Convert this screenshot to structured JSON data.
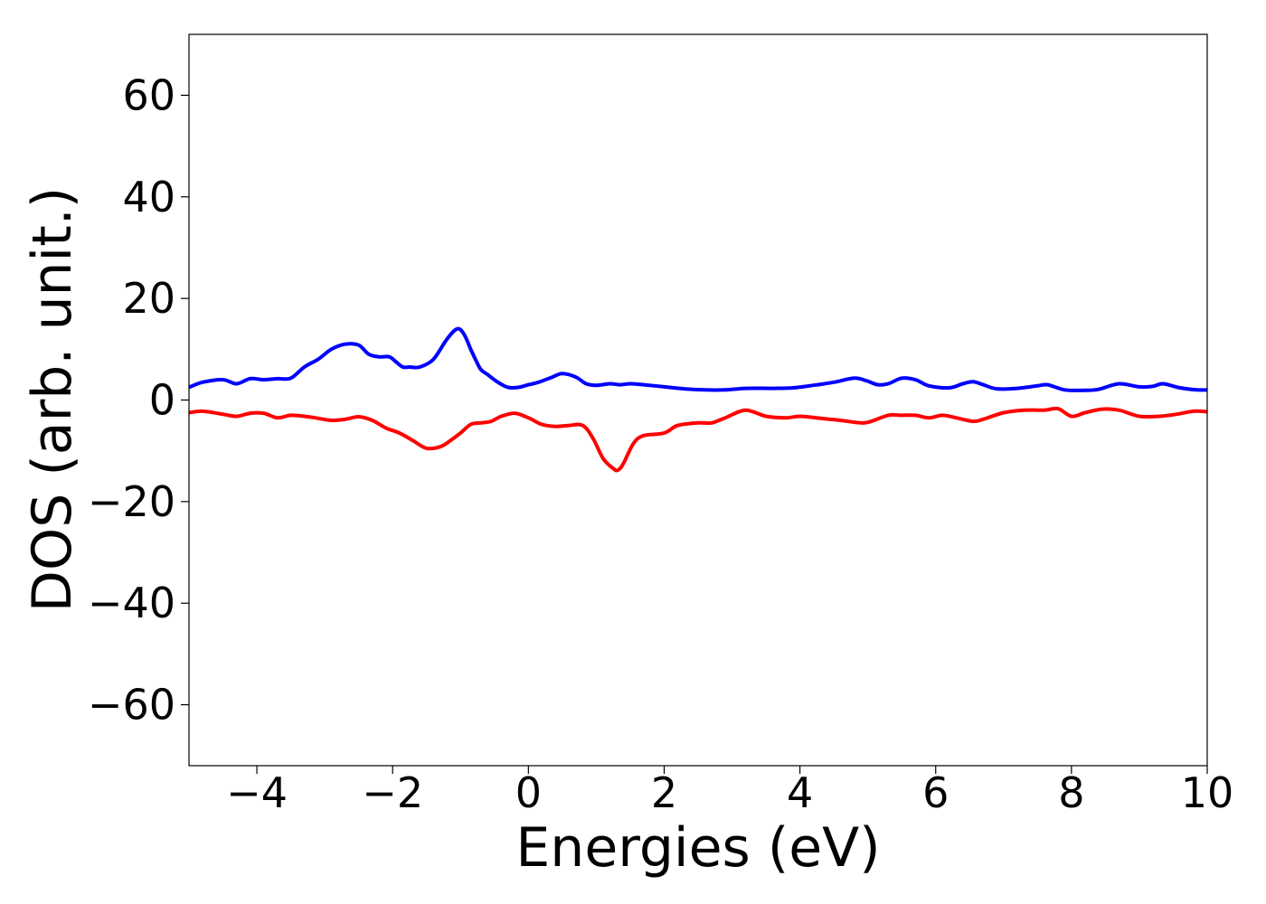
{
  "chart_data": {
    "type": "line",
    "title": "",
    "xlabel": "Energies (eV)",
    "ylabel": "DOS (arb. unit.)",
    "xlim": [
      -5,
      10
    ],
    "ylim": [
      -72,
      72
    ],
    "xticks": [
      -4,
      -2,
      0,
      2,
      4,
      6,
      8,
      10
    ],
    "xtick_labels": [
      "−4",
      "−2",
      "0",
      "2",
      "4",
      "6",
      "8",
      "10"
    ],
    "yticks": [
      60,
      40,
      20,
      0,
      -20,
      -40,
      -60
    ],
    "ytick_labels": [
      "60",
      "40",
      "20",
      "0",
      "−20",
      "−40",
      "−60"
    ],
    "grid": false,
    "legend": "none",
    "series": [
      {
        "color": "#0000ff",
        "x": [
          -5.0,
          -4.8,
          -4.5,
          -4.3,
          -4.1,
          -3.9,
          -3.7,
          -3.5,
          -3.3,
          -3.1,
          -2.9,
          -2.7,
          -2.5,
          -2.35,
          -2.2,
          -2.05,
          -1.95,
          -1.85,
          -1.75,
          -1.6,
          -1.4,
          -1.2,
          -1.05,
          -0.95,
          -0.85,
          -0.78,
          -0.7,
          -0.6,
          -0.45,
          -0.3,
          -0.15,
          0.0,
          0.15,
          0.35,
          0.5,
          0.7,
          0.85,
          1.0,
          1.2,
          1.35,
          1.5,
          1.7,
          2.0,
          2.3,
          2.6,
          2.9,
          3.2,
          3.6,
          3.9,
          4.2,
          4.5,
          4.8,
          4.98,
          5.15,
          5.3,
          5.5,
          5.7,
          5.9,
          6.2,
          6.4,
          6.55,
          6.7,
          6.9,
          7.2,
          7.5,
          7.65,
          7.9,
          8.2,
          8.4,
          8.7,
          9.0,
          9.2,
          9.35,
          9.6,
          9.85,
          10.0
        ],
        "y": [
          2.5,
          3.5,
          4.0,
          3.2,
          4.2,
          4.0,
          4.2,
          4.3,
          6.5,
          8.0,
          10.0,
          11.0,
          10.8,
          9.0,
          8.5,
          8.5,
          7.5,
          6.5,
          6.5,
          6.5,
          8.0,
          12.0,
          14.0,
          13.0,
          10.0,
          8.0,
          6.0,
          5.0,
          3.5,
          2.5,
          2.5,
          3.0,
          3.5,
          4.5,
          5.2,
          4.5,
          3.2,
          2.9,
          3.2,
          3.0,
          3.2,
          3.0,
          2.6,
          2.2,
          2.0,
          2.0,
          2.3,
          2.3,
          2.4,
          2.9,
          3.5,
          4.3,
          3.8,
          3.0,
          3.2,
          4.3,
          4.0,
          2.8,
          2.4,
          3.2,
          3.6,
          3.0,
          2.2,
          2.3,
          2.8,
          3.0,
          2.0,
          1.9,
          2.1,
          3.2,
          2.6,
          2.7,
          3.2,
          2.4,
          2.0,
          2.0
        ]
      },
      {
        "color": "#ff0000",
        "x": [
          -5.0,
          -4.8,
          -4.5,
          -4.3,
          -4.1,
          -3.9,
          -3.7,
          -3.5,
          -3.3,
          -3.1,
          -2.9,
          -2.7,
          -2.5,
          -2.3,
          -2.1,
          -1.9,
          -1.7,
          -1.5,
          -1.3,
          -1.15,
          -1.0,
          -0.85,
          -0.7,
          -0.55,
          -0.4,
          -0.2,
          0.0,
          0.2,
          0.4,
          0.6,
          0.8,
          0.95,
          1.1,
          1.25,
          1.32,
          1.4,
          1.55,
          1.7,
          2.0,
          2.2,
          2.5,
          2.7,
          2.9,
          3.2,
          3.5,
          3.8,
          4.0,
          4.3,
          4.6,
          4.9,
          5.05,
          5.3,
          5.5,
          5.7,
          5.9,
          6.1,
          6.3,
          6.55,
          6.7,
          7.0,
          7.3,
          7.6,
          7.8,
          8.0,
          8.2,
          8.45,
          8.7,
          9.0,
          9.3,
          9.55,
          9.8,
          10.0
        ],
        "y": [
          -2.5,
          -2.2,
          -2.8,
          -3.2,
          -2.6,
          -2.6,
          -3.5,
          -3.0,
          -3.2,
          -3.6,
          -4.0,
          -3.8,
          -3.3,
          -4.0,
          -5.5,
          -6.5,
          -8.0,
          -9.5,
          -9.2,
          -8.0,
          -6.5,
          -4.8,
          -4.5,
          -4.2,
          -3.2,
          -2.6,
          -3.5,
          -4.8,
          -5.2,
          -5.0,
          -5.0,
          -7.5,
          -11.5,
          -13.5,
          -13.8,
          -12.5,
          -8.5,
          -7.0,
          -6.5,
          -5.0,
          -4.5,
          -4.5,
          -3.5,
          -2.0,
          -3.2,
          -3.5,
          -3.2,
          -3.6,
          -4.0,
          -4.5,
          -4.2,
          -3.0,
          -3.0,
          -3.0,
          -3.5,
          -3.0,
          -3.5,
          -4.2,
          -3.8,
          -2.5,
          -2.0,
          -2.0,
          -1.7,
          -3.2,
          -2.5,
          -1.8,
          -2.0,
          -3.2,
          -3.2,
          -2.8,
          -2.2,
          -2.3
        ]
      }
    ]
  }
}
